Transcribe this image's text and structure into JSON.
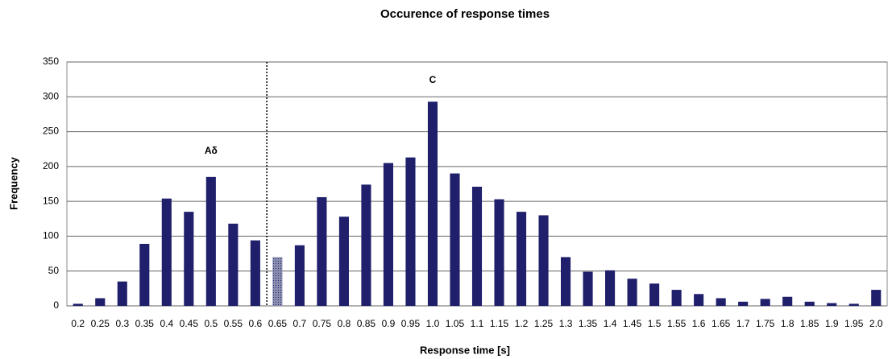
{
  "chart_data": {
    "type": "bar",
    "title": "Occurence of response times",
    "x_label": "Response time [s]",
    "y_label": "Frequency",
    "categories": [
      "0.2",
      "0.25",
      "0.3",
      "0.35",
      "0.4",
      "0.45",
      "0.5",
      "0.55",
      "0.6",
      "0.65",
      "0.7",
      "0.75",
      "0.8",
      "0.85",
      "0.9",
      "0.95",
      "1.0",
      "1.05",
      "1.1",
      "1.15",
      "1.2",
      "1.25",
      "1.3",
      "1.35",
      "1.4",
      "1.45",
      "1.5",
      "1.55",
      "1.6",
      "1.65",
      "1.7",
      "1.75",
      "1.8",
      "1.85",
      "1.9",
      "1.95",
      "2.0"
    ],
    "values": [
      3,
      11,
      35,
      89,
      154,
      135,
      185,
      118,
      94,
      70,
      87,
      156,
      128,
      174,
      205,
      213,
      293,
      190,
      171,
      153,
      135,
      130,
      70,
      49,
      51,
      39,
      32,
      23,
      17,
      11,
      6,
      10,
      13,
      6,
      4,
      3,
      23
    ],
    "color": "#1f1f6b",
    "ylim": [
      0,
      350
    ],
    "yticks": [
      0,
      50,
      100,
      150,
      200,
      250,
      300,
      350
    ],
    "grid": true,
    "annotations": [
      "Aδ",
      "C"
    ]
  }
}
